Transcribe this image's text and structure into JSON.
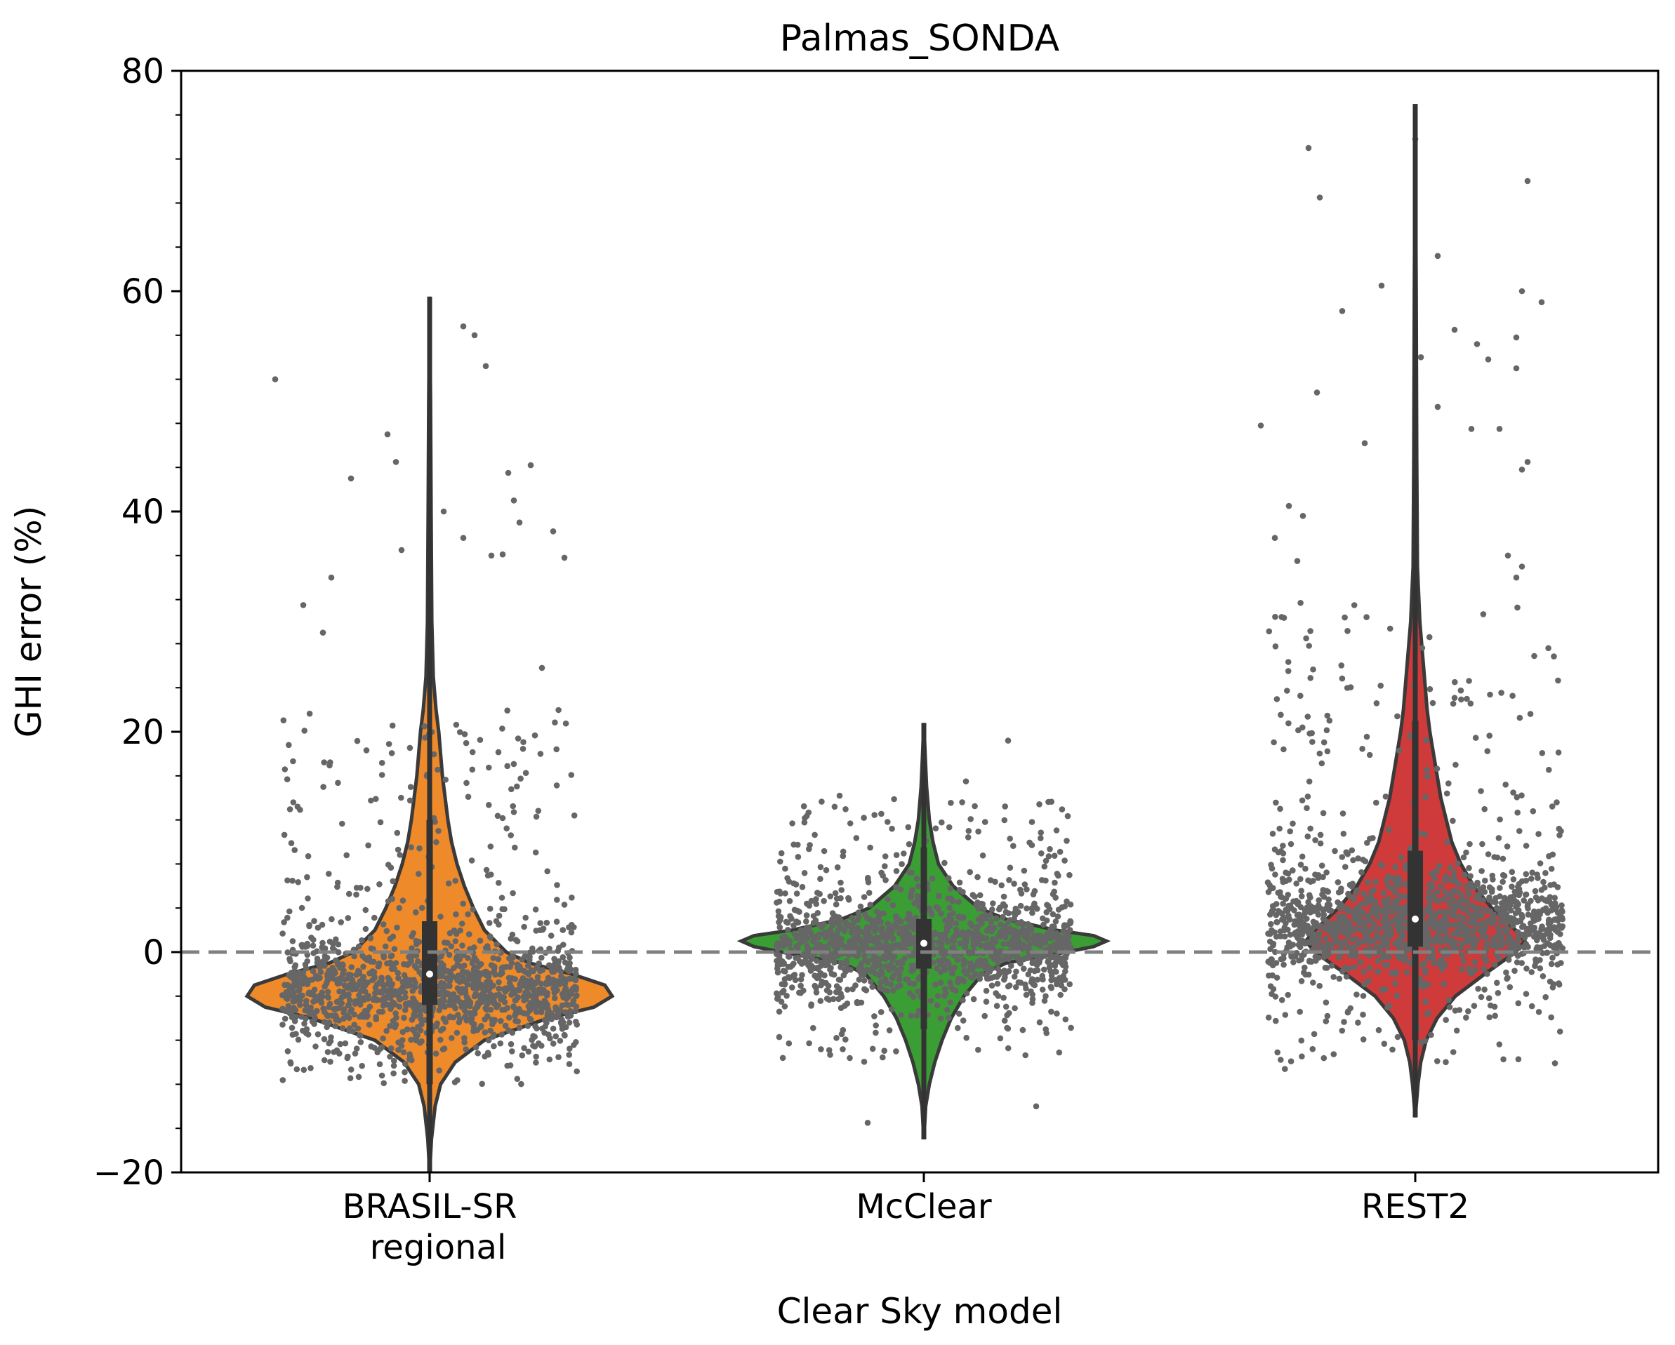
{
  "chart_data": {
    "type": "violin",
    "title": "Palmas_SONDA",
    "xlabel": "Clear Sky model",
    "ylabel": "GHI error (%)",
    "ylim": [
      -20,
      80
    ],
    "yticks": [
      -20,
      0,
      20,
      40,
      60,
      80
    ],
    "yticklabels": [
      "−20",
      "0",
      "20",
      "40",
      "60",
      "80"
    ],
    "reference_line": 0,
    "categories": [
      "BRASIL-SR regional",
      "McClear",
      "REST2"
    ],
    "category_label_lines": [
      [
        "BRASIL-SR",
        "regional"
      ],
      [
        "McClear"
      ],
      [
        "REST2"
      ]
    ],
    "series": [
      {
        "name": "BRASIL-SR regional",
        "color": "#ee8a2a",
        "median": -2.0,
        "q1": -4.8,
        "q3": 2.8,
        "whisker_low": -12.0,
        "whisker_high": 12.0,
        "min": -20.0,
        "max": 59.5,
        "violin_profile": [
          [
            -20,
            0.0
          ],
          [
            -17,
            0.01
          ],
          [
            -14,
            0.03
          ],
          [
            -12,
            0.06
          ],
          [
            -10,
            0.14
          ],
          [
            -8,
            0.3
          ],
          [
            -6,
            0.65
          ],
          [
            -5,
            0.9
          ],
          [
            -4,
            1.0
          ],
          [
            -3,
            0.96
          ],
          [
            -2,
            0.78
          ],
          [
            -1,
            0.55
          ],
          [
            0,
            0.42
          ],
          [
            2,
            0.3
          ],
          [
            4,
            0.24
          ],
          [
            6,
            0.19
          ],
          [
            8,
            0.15
          ],
          [
            10,
            0.12
          ],
          [
            12,
            0.1
          ],
          [
            14,
            0.085
          ],
          [
            16,
            0.07
          ],
          [
            18,
            0.06
          ],
          [
            20,
            0.05
          ],
          [
            22,
            0.035
          ],
          [
            25,
            0.02
          ],
          [
            30,
            0.012
          ],
          [
            40,
            0.008
          ],
          [
            50,
            0.005
          ],
          [
            59.5,
            0.0
          ]
        ],
        "points_core": [
          -12,
          22
        ],
        "points_center": -3.5,
        "outliers": [
          [
            -0.55,
            52.0
          ],
          [
            -0.28,
            43.0
          ],
          [
            -0.35,
            34.0
          ],
          [
            -0.15,
            47.0
          ],
          [
            -0.12,
            44.5
          ],
          [
            0.12,
            56.8
          ],
          [
            0.16,
            56.0
          ],
          [
            0.2,
            53.2
          ],
          [
            0.05,
            40.0
          ],
          [
            0.12,
            37.6
          ],
          [
            0.28,
            43.5
          ],
          [
            0.36,
            44.2
          ],
          [
            0.44,
            38.2
          ],
          [
            0.48,
            35.8
          ],
          [
            0.32,
            39.0
          ],
          [
            -0.45,
            31.5
          ],
          [
            -0.38,
            29.0
          ],
          [
            0.3,
            41.0
          ],
          [
            0.22,
            36.0
          ],
          [
            0.4,
            25.8
          ],
          [
            -0.1,
            36.5
          ],
          [
            0.26,
            36.1
          ]
        ]
      },
      {
        "name": "McClear",
        "color": "#3a9e35",
        "median": 0.8,
        "q1": -1.5,
        "q3": 3.0,
        "whisker_low": -7.0,
        "whisker_high": 9.5,
        "min": -17.0,
        "max": 20.8,
        "violin_profile": [
          [
            -17,
            0.0
          ],
          [
            -14,
            0.01
          ],
          [
            -12,
            0.03
          ],
          [
            -10,
            0.06
          ],
          [
            -8,
            0.1
          ],
          [
            -6,
            0.15
          ],
          [
            -4,
            0.22
          ],
          [
            -2,
            0.32
          ],
          [
            -1,
            0.45
          ],
          [
            0,
            0.78
          ],
          [
            0.5,
            0.93
          ],
          [
            1,
            1.0
          ],
          [
            1.5,
            0.93
          ],
          [
            2,
            0.72
          ],
          [
            3,
            0.45
          ],
          [
            4,
            0.3
          ],
          [
            6,
            0.16
          ],
          [
            8,
            0.08
          ],
          [
            10,
            0.05
          ],
          [
            12,
            0.03
          ],
          [
            15,
            0.015
          ],
          [
            18,
            0.007
          ],
          [
            20.8,
            0.0
          ]
        ],
        "points_core": [
          -10,
          14
        ],
        "points_center": 0.5,
        "outliers": [
          [
            -0.2,
            -15.5
          ],
          [
            0.4,
            -14.0
          ],
          [
            0.3,
            19.2
          ],
          [
            0.15,
            15.5
          ],
          [
            -0.3,
            14.2
          ]
        ]
      },
      {
        "name": "REST2",
        "color": "#cf3a3a",
        "median": 3.0,
        "q1": 0.5,
        "q3": 9.2,
        "whisker_low": -8.0,
        "whisker_high": 21.0,
        "min": -15.0,
        "max": 77.0,
        "violin_profile": [
          [
            -15,
            0.0
          ],
          [
            -12,
            0.015
          ],
          [
            -10,
            0.03
          ],
          [
            -8,
            0.06
          ],
          [
            -6,
            0.12
          ],
          [
            -4,
            0.22
          ],
          [
            -2,
            0.38
          ],
          [
            0,
            0.55
          ],
          [
            1,
            0.6
          ],
          [
            2,
            0.55
          ],
          [
            4,
            0.42
          ],
          [
            6,
            0.32
          ],
          [
            8,
            0.25
          ],
          [
            10,
            0.2
          ],
          [
            12,
            0.17
          ],
          [
            14,
            0.14
          ],
          [
            16,
            0.12
          ],
          [
            18,
            0.1
          ],
          [
            20,
            0.08
          ],
          [
            22,
            0.065
          ],
          [
            24,
            0.055
          ],
          [
            26,
            0.045
          ],
          [
            28,
            0.035
          ],
          [
            30,
            0.025
          ],
          [
            35,
            0.012
          ],
          [
            45,
            0.008
          ],
          [
            60,
            0.005
          ],
          [
            77,
            0.0
          ]
        ],
        "points_core": [
          -11,
          32
        ],
        "points_center": 2.5,
        "outliers": [
          [
            -0.38,
            73.0
          ],
          [
            -0.34,
            68.5
          ],
          [
            0.0,
            73.8
          ],
          [
            0.4,
            70.0
          ],
          [
            -0.12,
            60.5
          ],
          [
            0.08,
            63.2
          ],
          [
            0.38,
            60.0
          ],
          [
            0.36,
            55.8
          ],
          [
            0.36,
            53.0
          ],
          [
            0.14,
            56.5
          ],
          [
            0.22,
            55.2
          ],
          [
            0.26,
            53.8
          ],
          [
            0.2,
            47.5
          ],
          [
            0.3,
            47.5
          ],
          [
            0.38,
            43.8
          ],
          [
            0.4,
            44.5
          ],
          [
            0.08,
            49.5
          ],
          [
            -0.26,
            58.2
          ],
          [
            -0.35,
            50.8
          ],
          [
            -0.18,
            46.2
          ],
          [
            -0.55,
            47.8
          ],
          [
            -0.45,
            40.5
          ],
          [
            -0.5,
            37.6
          ],
          [
            -0.4,
            39.6
          ],
          [
            -0.42,
            35.5
          ],
          [
            0.33,
            36.0
          ],
          [
            0.36,
            34.0
          ],
          [
            0.38,
            35.0
          ],
          [
            0.45,
            59.0
          ],
          [
            0.02,
            54.0
          ]
        ]
      }
    ],
    "point_color": "#666666",
    "box_color": "#333333",
    "median_color": "#ffffff",
    "reference_line_color": "#808080",
    "legend": "none",
    "grid": false
  }
}
